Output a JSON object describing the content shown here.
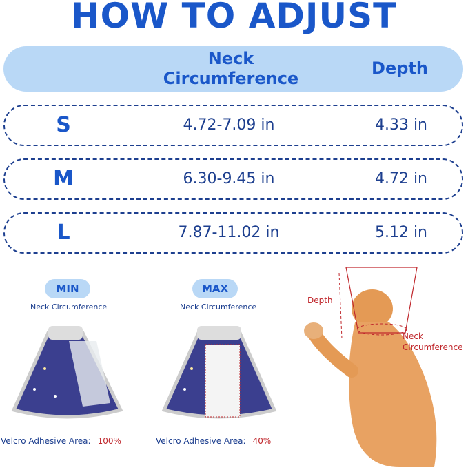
{
  "title": "HOW TO ADJUST",
  "table": {
    "headers": {
      "neck_line1": "Neck",
      "neck_line2": "Circumference",
      "depth": "Depth"
    },
    "rows": [
      {
        "size": "S",
        "neck": "4.72-7.09 in",
        "depth": "4.33 in"
      },
      {
        "size": "M",
        "neck": "6.30-9.45 in",
        "depth": "4.72 in"
      },
      {
        "size": "L",
        "neck": "7.87-11.02 in",
        "depth": "5.12 in"
      }
    ]
  },
  "adjust": [
    {
      "label": "MIN",
      "caption": "Neck Circumference",
      "velcro_label": "Velcro Adhesive Area:",
      "velcro_value": "100%"
    },
    {
      "label": "MAX",
      "caption": "Neck Circumference",
      "velcro_label": "Velcro Adhesive Area:",
      "velcro_value": "40%"
    }
  ],
  "cat_diagram": {
    "depth_label": "Depth",
    "neck_label_line1": "Neck",
    "neck_label_line2": "Circumference"
  },
  "colors": {
    "title": "#1a57c9",
    "header_bg": "#b9d8f6",
    "text": "#1d3f8f",
    "accent_red": "#c0282d",
    "collar_fabric": "#3b3f8f"
  }
}
